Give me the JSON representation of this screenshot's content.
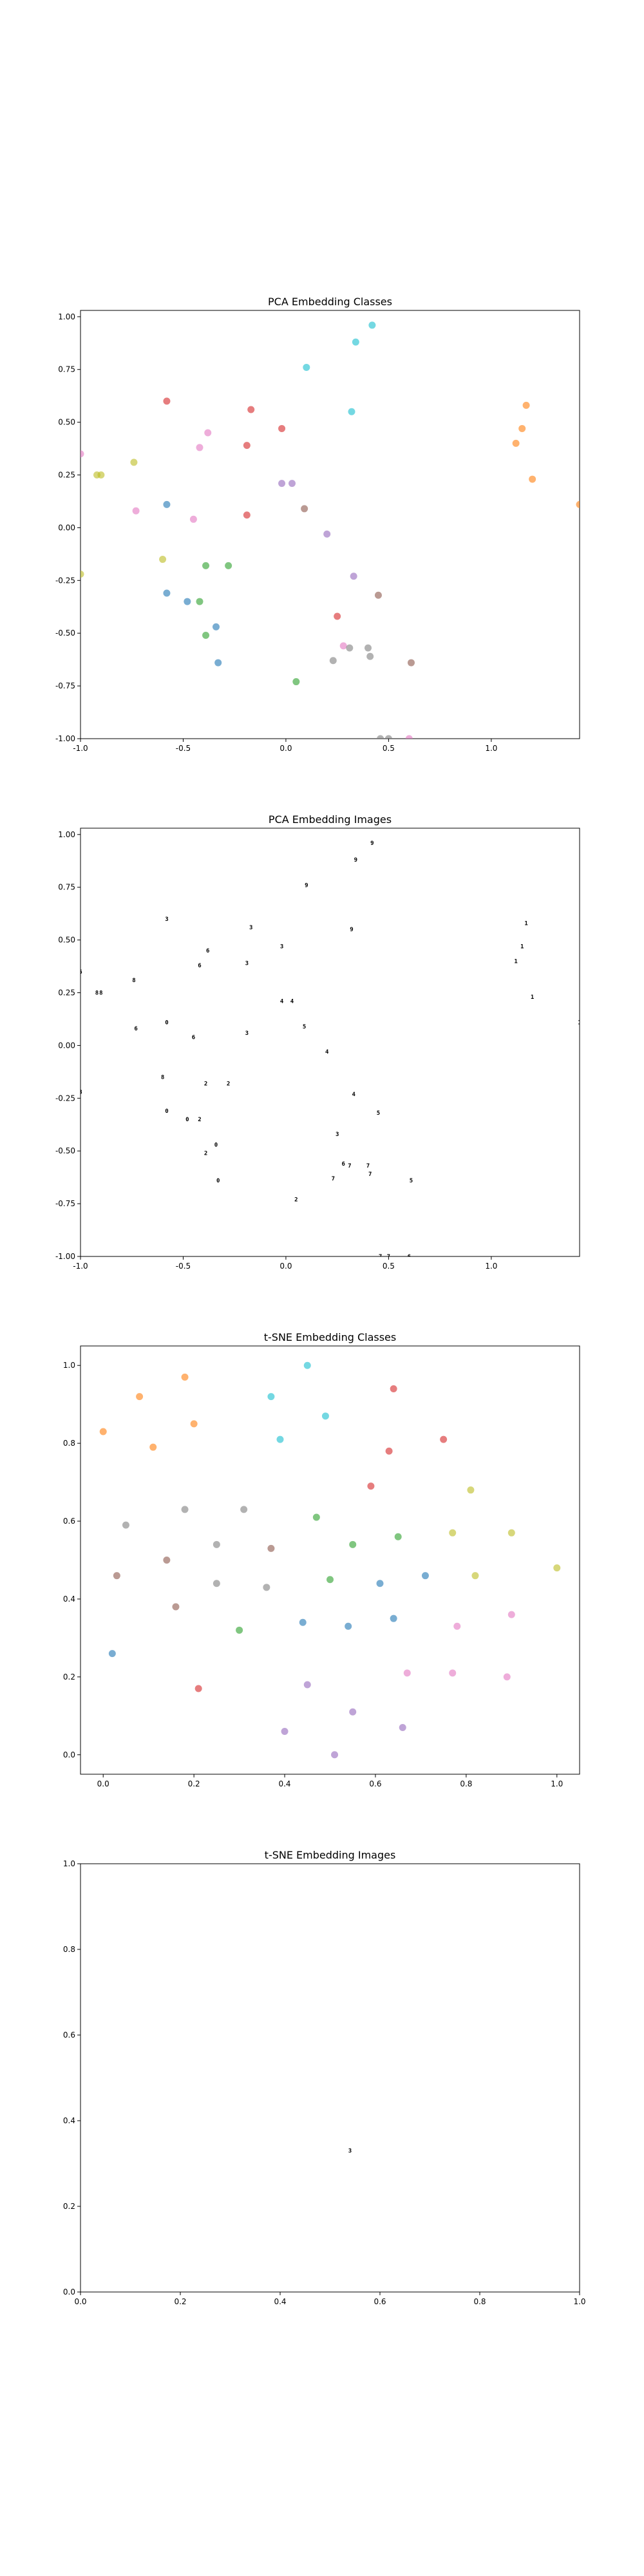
{
  "colors": [
    "#1f77b4",
    "#ff7f0e",
    "#2ca02c",
    "#d62728",
    "#9467bd",
    "#8c564b",
    "#e377c2",
    "#7f7f7f",
    "#bcbd22",
    "#17becf"
  ],
  "chart_data": [
    {
      "type": "scatter",
      "title": "PCA Embedding Classes",
      "xlim": [
        -1.0,
        1.43
      ],
      "ylim": [
        -1.0,
        1.03
      ],
      "xticks": [
        "-1.0",
        "-0.5",
        "0.0",
        "0.5",
        "1.0"
      ],
      "xtick_values": [
        -1.0,
        -0.5,
        0.0,
        0.5,
        1.0
      ],
      "yticks": [
        "-1.00",
        "-0.75",
        "-0.50",
        "-0.25",
        "0.00",
        "0.25",
        "0.50",
        "0.75",
        "1.00"
      ],
      "ytick_values": [
        -1.0,
        -0.75,
        -0.5,
        -0.25,
        0.0,
        0.25,
        0.5,
        0.75,
        1.0
      ],
      "grid": false,
      "points": [
        {
          "x": -0.58,
          "y": 0.11,
          "c": 0
        },
        {
          "x": -0.58,
          "y": -0.31,
          "c": 0
        },
        {
          "x": -0.48,
          "y": -0.35,
          "c": 0
        },
        {
          "x": -0.34,
          "y": -0.47,
          "c": 0
        },
        {
          "x": -0.33,
          "y": -0.64,
          "c": 0
        },
        {
          "x": 1.17,
          "y": 0.58,
          "c": 1
        },
        {
          "x": 1.15,
          "y": 0.47,
          "c": 1
        },
        {
          "x": 1.12,
          "y": 0.4,
          "c": 1
        },
        {
          "x": 1.2,
          "y": 0.23,
          "c": 1
        },
        {
          "x": 1.43,
          "y": 0.11,
          "c": 1
        },
        {
          "x": -0.39,
          "y": -0.18,
          "c": 2
        },
        {
          "x": -0.28,
          "y": -0.18,
          "c": 2
        },
        {
          "x": -0.42,
          "y": -0.35,
          "c": 2
        },
        {
          "x": -0.39,
          "y": -0.51,
          "c": 2
        },
        {
          "x": 0.05,
          "y": -0.73,
          "c": 2
        },
        {
          "x": -0.58,
          "y": 0.6,
          "c": 3
        },
        {
          "x": -0.17,
          "y": 0.56,
          "c": 3
        },
        {
          "x": -0.02,
          "y": 0.47,
          "c": 3
        },
        {
          "x": -0.19,
          "y": 0.39,
          "c": 3
        },
        {
          "x": -0.19,
          "y": 0.06,
          "c": 3
        },
        {
          "x": 0.25,
          "y": -0.42,
          "c": 3
        },
        {
          "x": -0.02,
          "y": 0.21,
          "c": 4
        },
        {
          "x": 0.03,
          "y": 0.21,
          "c": 4
        },
        {
          "x": 0.2,
          "y": -0.03,
          "c": 4
        },
        {
          "x": 0.33,
          "y": -0.23,
          "c": 4
        },
        {
          "x": 0.09,
          "y": 0.09,
          "c": 5
        },
        {
          "x": 0.45,
          "y": -0.32,
          "c": 5
        },
        {
          "x": 0.61,
          "y": -0.64,
          "c": 5
        },
        {
          "x": -1.0,
          "y": 0.35,
          "c": 6
        },
        {
          "x": -0.73,
          "y": 0.08,
          "c": 6
        },
        {
          "x": -0.45,
          "y": 0.04,
          "c": 6
        },
        {
          "x": -0.42,
          "y": 0.38,
          "c": 6
        },
        {
          "x": -0.38,
          "y": 0.45,
          "c": 6
        },
        {
          "x": 0.28,
          "y": -0.56,
          "c": 6
        },
        {
          "x": 0.6,
          "y": -1.0,
          "c": 6
        },
        {
          "x": 0.23,
          "y": -0.63,
          "c": 7
        },
        {
          "x": 0.31,
          "y": -0.57,
          "c": 7
        },
        {
          "x": 0.4,
          "y": -0.57,
          "c": 7
        },
        {
          "x": 0.41,
          "y": -0.61,
          "c": 7
        },
        {
          "x": 0.46,
          "y": -1.0,
          "c": 7
        },
        {
          "x": 0.5,
          "y": -1.0,
          "c": 7
        },
        {
          "x": -0.92,
          "y": 0.25,
          "c": 8
        },
        {
          "x": -0.9,
          "y": 0.25,
          "c": 8
        },
        {
          "x": -0.74,
          "y": 0.31,
          "c": 8
        },
        {
          "x": -0.6,
          "y": -0.15,
          "c": 8
        },
        {
          "x": -1.0,
          "y": -0.22,
          "c": 8
        },
        {
          "x": 0.1,
          "y": 0.76,
          "c": 9
        },
        {
          "x": 0.34,
          "y": 0.88,
          "c": 9
        },
        {
          "x": 0.42,
          "y": 0.96,
          "c": 9
        },
        {
          "x": 0.32,
          "y": 0.55,
          "c": 9
        }
      ]
    },
    {
      "type": "scatter",
      "title": "PCA Embedding Images",
      "xlim": [
        -1.0,
        1.43
      ],
      "ylim": [
        -1.0,
        1.03
      ],
      "xticks": [
        "-1.0",
        "-0.5",
        "0.0",
        "0.5",
        "1.0"
      ],
      "xtick_values": [
        -1.0,
        -0.5,
        0.0,
        0.5,
        1.0
      ],
      "yticks": [
        "-1.00",
        "-0.75",
        "-0.50",
        "-0.25",
        "0.00",
        "0.25",
        "0.50",
        "0.75",
        "1.00"
      ],
      "ytick_values": [
        -1.0,
        -0.75,
        -0.5,
        -0.25,
        0.0,
        0.25,
        0.5,
        0.75,
        1.0
      ],
      "grid": false,
      "glyph_points": "same-as-classes"
    },
    {
      "type": "scatter",
      "title": "t-SNE Embedding Classes",
      "xlim": [
        -0.05,
        1.05
      ],
      "ylim": [
        -0.05,
        1.05
      ],
      "xticks": [
        "0.0",
        "0.2",
        "0.4",
        "0.6",
        "0.8",
        "1.0"
      ],
      "xtick_values": [
        0.0,
        0.2,
        0.4,
        0.6,
        0.8,
        1.0
      ],
      "yticks": [
        "0.0",
        "0.2",
        "0.4",
        "0.6",
        "0.8",
        "1.0"
      ],
      "ytick_values": [
        0.0,
        0.2,
        0.4,
        0.6,
        0.8,
        1.0
      ],
      "grid": false,
      "points": [
        {
          "x": 0.02,
          "y": 0.26,
          "c": 0
        },
        {
          "x": 0.44,
          "y": 0.34,
          "c": 0
        },
        {
          "x": 0.54,
          "y": 0.33,
          "c": 0
        },
        {
          "x": 0.61,
          "y": 0.44,
          "c": 0
        },
        {
          "x": 0.64,
          "y": 0.35,
          "c": 0
        },
        {
          "x": 0.71,
          "y": 0.46,
          "c": 0
        },
        {
          "x": 0.0,
          "y": 0.83,
          "c": 1
        },
        {
          "x": 0.08,
          "y": 0.92,
          "c": 1
        },
        {
          "x": 0.11,
          "y": 0.79,
          "c": 1
        },
        {
          "x": 0.18,
          "y": 0.97,
          "c": 1
        },
        {
          "x": 0.2,
          "y": 0.85,
          "c": 1
        },
        {
          "x": 0.3,
          "y": 0.32,
          "c": 2
        },
        {
          "x": 0.47,
          "y": 0.61,
          "c": 2
        },
        {
          "x": 0.5,
          "y": 0.45,
          "c": 2
        },
        {
          "x": 0.55,
          "y": 0.54,
          "c": 2
        },
        {
          "x": 0.65,
          "y": 0.56,
          "c": 2
        },
        {
          "x": 0.21,
          "y": 0.17,
          "c": 3
        },
        {
          "x": 0.59,
          "y": 0.69,
          "c": 3
        },
        {
          "x": 0.63,
          "y": 0.78,
          "c": 3
        },
        {
          "x": 0.64,
          "y": 0.94,
          "c": 3
        },
        {
          "x": 0.75,
          "y": 0.81,
          "c": 3
        },
        {
          "x": 0.4,
          "y": 0.06,
          "c": 4
        },
        {
          "x": 0.45,
          "y": 0.18,
          "c": 4
        },
        {
          "x": 0.51,
          "y": 0.0,
          "c": 4
        },
        {
          "x": 0.55,
          "y": 0.11,
          "c": 4
        },
        {
          "x": 0.66,
          "y": 0.07,
          "c": 4
        },
        {
          "x": 0.03,
          "y": 0.46,
          "c": 5
        },
        {
          "x": 0.14,
          "y": 0.5,
          "c": 5
        },
        {
          "x": 0.16,
          "y": 0.38,
          "c": 5
        },
        {
          "x": 0.37,
          "y": 0.53,
          "c": 5
        },
        {
          "x": 0.67,
          "y": 0.21,
          "c": 6
        },
        {
          "x": 0.77,
          "y": 0.21,
          "c": 6
        },
        {
          "x": 0.78,
          "y": 0.33,
          "c": 6
        },
        {
          "x": 0.89,
          "y": 0.2,
          "c": 6
        },
        {
          "x": 0.9,
          "y": 0.36,
          "c": 6
        },
        {
          "x": 0.05,
          "y": 0.59,
          "c": 7
        },
        {
          "x": 0.18,
          "y": 0.63,
          "c": 7
        },
        {
          "x": 0.25,
          "y": 0.54,
          "c": 7
        },
        {
          "x": 0.25,
          "y": 0.44,
          "c": 7
        },
        {
          "x": 0.31,
          "y": 0.63,
          "c": 7
        },
        {
          "x": 0.36,
          "y": 0.43,
          "c": 7
        },
        {
          "x": 0.77,
          "y": 0.57,
          "c": 8
        },
        {
          "x": 0.81,
          "y": 0.68,
          "c": 8
        },
        {
          "x": 0.82,
          "y": 0.46,
          "c": 8
        },
        {
          "x": 0.9,
          "y": 0.57,
          "c": 8
        },
        {
          "x": 1.0,
          "y": 0.48,
          "c": 8
        },
        {
          "x": 0.37,
          "y": 0.92,
          "c": 9
        },
        {
          "x": 0.39,
          "y": 0.81,
          "c": 9
        },
        {
          "x": 0.45,
          "y": 1.0,
          "c": 9
        },
        {
          "x": 0.49,
          "y": 0.87,
          "c": 9
        }
      ]
    },
    {
      "type": "scatter",
      "title": "t-SNE Embedding Images",
      "xlim": [
        0.0,
        1.0
      ],
      "ylim": [
        0.0,
        1.0
      ],
      "xticks": [
        "0.0",
        "0.2",
        "0.4",
        "0.6",
        "0.8",
        "1.0"
      ],
      "xtick_values": [
        0.0,
        0.2,
        0.4,
        0.6,
        0.8,
        1.0
      ],
      "yticks": [
        "0.0",
        "0.2",
        "0.4",
        "0.6",
        "0.8",
        "1.0"
      ],
      "ytick_values": [
        0.0,
        0.2,
        0.4,
        0.6,
        0.8,
        1.0
      ],
      "grid": false,
      "glyph_points": [
        {
          "x": 0.54,
          "y": 0.33
        }
      ]
    }
  ]
}
